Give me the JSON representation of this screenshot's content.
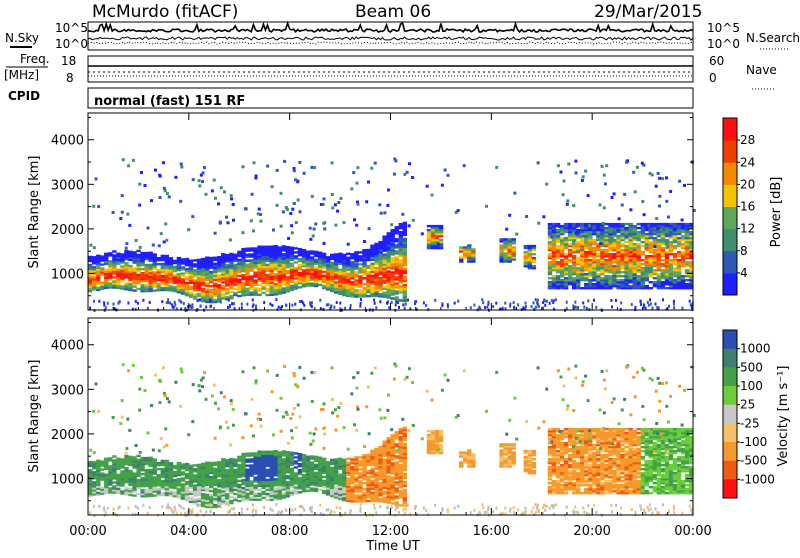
{
  "header": {
    "station": "McMurdo (fitACF)",
    "beam": "Beam 06",
    "date": "29/Mar/2015"
  },
  "summary_labels": {
    "nsky": "N.Sky",
    "nsearch": "N.Search",
    "freq": "Freq.",
    "freq_unit": "[MHz]",
    "nave": "Nave",
    "cpid": "CPID",
    "cpid_value": "normal (fast) 151 RF",
    "noise_hi": "10^5",
    "noise_lo": "10^0",
    "freq_hi": "18",
    "freq_lo": "8",
    "nave_hi": "60",
    "nave_lo": "0"
  },
  "colors": {
    "power": [
      "#1f1fff",
      "#2f58b8",
      "#3d8f6e",
      "#5fa85a",
      "#f5c400",
      "#f58a00",
      "#f04000",
      "#ff1010"
    ],
    "velocity": [
      "#ff1010",
      "#f05a14",
      "#f59a2a",
      "#f4c06a",
      "#c8c8c8",
      "#6ccd3c",
      "#43a247",
      "#3f7f72",
      "#2a4fb0"
    ],
    "ground_scatter": "#bdbdbd"
  },
  "chart_data": [
    {
      "type": "heatmap",
      "parameter": "power",
      "ylabel": "Slant Range [km]",
      "xlim_hours": [
        0,
        24
      ],
      "ylim_km": [
        180,
        4600
      ],
      "yticks": [
        "1000",
        "2000",
        "3000",
        "4000"
      ],
      "colorbar_label": "Power [dB]",
      "colorbar_ticks": [
        "4",
        "8",
        "12",
        "16",
        "20",
        "24",
        "28"
      ],
      "colorbar_range": [
        0,
        32
      ]
    },
    {
      "type": "heatmap",
      "parameter": "velocity",
      "ylabel": "Slant Range [km]",
      "xlabel": "Time UT",
      "xticks": [
        "00:00",
        "04:00",
        "08:00",
        "12:00",
        "16:00",
        "20:00",
        "00:00"
      ],
      "xlim_hours": [
        0,
        24
      ],
      "ylim_km": [
        180,
        4600
      ],
      "yticks": [
        "1000",
        "2000",
        "3000",
        "4000"
      ],
      "colorbar_label": "Velocity [m s⁻¹]",
      "colorbar_ticks": [
        "1000",
        "500",
        "100",
        "25",
        "-25",
        "-100",
        "-500",
        "-1000"
      ]
    }
  ]
}
